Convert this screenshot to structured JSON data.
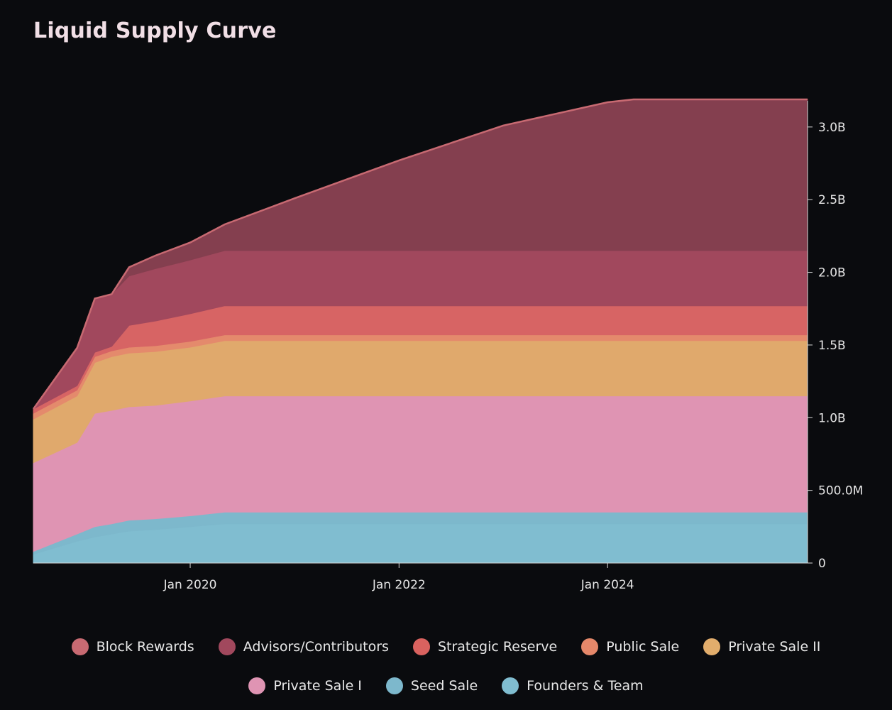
{
  "chart_data": {
    "type": "area",
    "title": "Liquid Supply Curve",
    "stacked": true,
    "x_axis": {
      "type": "date",
      "range": [
        "2018-07-01",
        "2025-12-01"
      ],
      "ticks": [
        "2020-01-01",
        "2022-01-01",
        "2024-01-01"
      ],
      "tick_labels": [
        "Jan 2020",
        "Jan 2022",
        "Jan 2024"
      ]
    },
    "y_axis": {
      "position": "right",
      "range": [
        0,
        3180000000
      ],
      "ticks": [
        0,
        500000000,
        1000000000,
        1500000000,
        2000000000,
        2500000000,
        3000000000
      ],
      "tick_labels": [
        "0",
        "500.0M",
        "1.0B",
        "1.5B",
        "2.0B",
        "2.5B",
        "3.0B"
      ]
    },
    "grid": false,
    "legend_placement": "bottom",
    "x": [
      "2018-07-01",
      "2018-12-01",
      "2019-02-01",
      "2019-04-01",
      "2019-06-01",
      "2019-09-01",
      "2020-01-01",
      "2020-05-01",
      "2021-01-01",
      "2022-01-01",
      "2023-01-01",
      "2024-01-01",
      "2024-04-01",
      "2025-12-01"
    ],
    "series": [
      {
        "name": "Founders & Team",
        "color": "#80bdd0",
        "values": [
          60000000,
          150000000,
          180000000,
          200000000,
          220000000,
          230000000,
          250000000,
          270000000,
          270000000,
          270000000,
          270000000,
          270000000,
          270000000,
          270000000
        ]
      },
      {
        "name": "Seed Sale",
        "color": "#7db8cc",
        "values": [
          20000000,
          50000000,
          70000000,
          70000000,
          75000000,
          75000000,
          75000000,
          80000000,
          80000000,
          80000000,
          80000000,
          80000000,
          80000000,
          80000000
        ]
      },
      {
        "name": "Private Sale I",
        "color": "#df94b3",
        "values": [
          610000000,
          630000000,
          780000000,
          780000000,
          780000000,
          780000000,
          790000000,
          800000000,
          800000000,
          800000000,
          800000000,
          800000000,
          800000000,
          800000000
        ]
      },
      {
        "name": "Private Sale II",
        "color": "#e0a96c",
        "values": [
          300000000,
          320000000,
          350000000,
          370000000,
          370000000,
          370000000,
          370000000,
          380000000,
          380000000,
          380000000,
          380000000,
          380000000,
          380000000,
          380000000
        ]
      },
      {
        "name": "Public Sale",
        "color": "#e48a6c",
        "values": [
          40000000,
          40000000,
          40000000,
          40000000,
          40000000,
          40000000,
          40000000,
          40000000,
          40000000,
          40000000,
          40000000,
          40000000,
          40000000,
          40000000
        ]
      },
      {
        "name": "Strategic Reserve",
        "color": "#d76464",
        "values": [
          30000000,
          30000000,
          30000000,
          30000000,
          150000000,
          170000000,
          190000000,
          200000000,
          200000000,
          200000000,
          200000000,
          200000000,
          200000000,
          200000000
        ]
      },
      {
        "name": "Advisors/Contributors",
        "color": "#a1485d",
        "values": [
          0,
          260000000,
          370000000,
          360000000,
          340000000,
          360000000,
          370000000,
          380000000,
          380000000,
          380000000,
          380000000,
          380000000,
          380000000,
          380000000
        ]
      },
      {
        "name": "Block Rewards",
        "color": "#843f4f",
        "values": [
          0,
          0,
          0,
          0,
          60000000,
          90000000,
          120000000,
          180000000,
          360000000,
          620000000,
          860000000,
          1020000000,
          1040000000,
          1040000000
        ]
      }
    ],
    "legend_order": [
      "Block Rewards",
      "Advisors/Contributors",
      "Strategic Reserve",
      "Public Sale",
      "Private Sale II",
      "Private Sale I",
      "Seed Sale",
      "Founders & Team"
    ],
    "legend_colors": {
      "Block Rewards": "#c86a72",
      "Advisors/Contributors": "#a1485d",
      "Strategic Reserve": "#d9625f",
      "Public Sale": "#e5886a",
      "Private Sale II": "#e2ad6c",
      "Private Sale I": "#df94b3",
      "Seed Sale": "#7db8cc",
      "Founders & Team": "#80bdd0"
    }
  }
}
